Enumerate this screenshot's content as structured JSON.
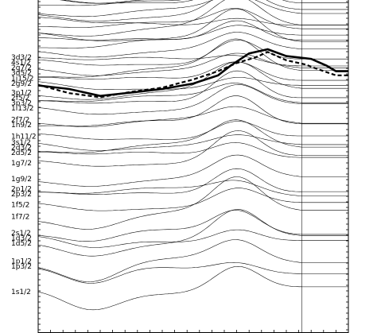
{
  "chart_data": {
    "type": "line",
    "title": "",
    "xlabel": "",
    "ylabel": "",
    "x_range": [
      0,
      1
    ],
    "y_range": [
      0,
      1
    ],
    "grid": false,
    "legend": "none",
    "level_labels": [
      {
        "label": "3d3/2",
        "level": 0.771
      },
      {
        "label": "4s1/2",
        "level": 0.752
      },
      {
        "label": "2g7/2",
        "level": 0.733
      },
      {
        "label": "3d5/2",
        "level": 0.714
      },
      {
        "label": "1j15/2",
        "level": 0.694
      },
      {
        "label": "2g9/2",
        "level": 0.675
      },
      {
        "label": "3p1/2",
        "level": 0.642
      },
      {
        "label": "2f5/2",
        "level": 0.623
      },
      {
        "label": "3p3/2",
        "level": 0.604
      },
      {
        "label": "1i13/2",
        "level": 0.585
      },
      {
        "label": "2f7/2",
        "level": 0.544
      },
      {
        "label": "1h9/2",
        "level": 0.525
      },
      {
        "label": "1h11/2",
        "level": 0.482
      },
      {
        "label": "3s1/2",
        "level": 0.461
      },
      {
        "label": "2d3/2",
        "level": 0.442
      },
      {
        "label": "2d5/2",
        "level": 0.423
      },
      {
        "label": "1g7/2",
        "level": 0.385
      },
      {
        "label": "1g9/2",
        "level": 0.327
      },
      {
        "label": "2p1/2",
        "level": 0.291
      },
      {
        "label": "2p3/2",
        "level": 0.272
      },
      {
        "label": "1f5/2",
        "level": 0.234
      },
      {
        "label": "1f7/2",
        "level": 0.19
      },
      {
        "label": "2s1/2",
        "level": 0.131
      },
      {
        "label": "1d3/2",
        "level": 0.112
      },
      {
        "label": "1d5/2",
        "level": 0.093
      },
      {
        "label": "1p1/2",
        "level": 0.028
      },
      {
        "label": "1p3/2",
        "level": 0.009
      },
      {
        "label": "1s1/2",
        "level": -0.084
      }
    ],
    "series": [
      {
        "style": "bold",
        "x": [
          0.0,
          0.1,
          0.2,
          0.3,
          0.4,
          0.5,
          0.58,
          0.62,
          0.68,
          0.74,
          0.8,
          0.84,
          0.88,
          0.93,
          0.96,
          1.0
        ],
        "y": [
          0.668,
          0.655,
          0.63,
          0.642,
          0.655,
          0.675,
          0.705,
          0.74,
          0.785,
          0.8,
          0.775,
          0.77,
          0.765,
          0.74,
          0.72,
          0.72
        ]
      },
      {
        "style": "dashed",
        "x": [
          0.0,
          0.1,
          0.2,
          0.3,
          0.4,
          0.5,
          0.58,
          0.64,
          0.7,
          0.74,
          0.8,
          0.86,
          0.9,
          0.96,
          1.0
        ],
        "y": [
          0.67,
          0.64,
          0.625,
          0.645,
          0.66,
          0.69,
          0.72,
          0.75,
          0.77,
          0.79,
          0.76,
          0.745,
          0.728,
          0.705,
          0.705
        ]
      }
    ]
  }
}
